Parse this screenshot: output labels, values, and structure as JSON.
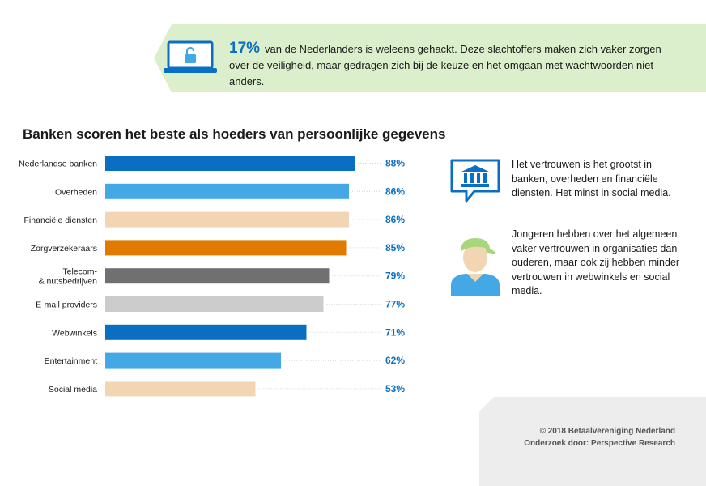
{
  "banner": {
    "percent": "17%",
    "text": "van de Nederlanders is weleens gehackt. Deze slachtoffers maken zich vaker zorgen over de veiligheid, maar gedragen zich bij de keuze en het omgaan met wachtwoorden niet anders.",
    "icon": "laptop-lock-icon"
  },
  "chart_data": {
    "type": "bar",
    "orientation": "horizontal",
    "title": "Banken scoren het beste als hoeders van persoonlijke gegevens",
    "categories": [
      "Nederlandse banken",
      "Overheden",
      "Financiële diensten",
      "Zorgverzekeraars",
      "Telecom- & nutsbedrijven",
      "E-mail providers",
      "Webwinkels",
      "Entertainment",
      "Social media"
    ],
    "values": [
      88,
      86,
      86,
      85,
      79,
      77,
      71,
      62,
      53
    ],
    "value_labels": [
      "88%",
      "86%",
      "86%",
      "85%",
      "79%",
      "77%",
      "71%",
      "62%",
      "53%"
    ],
    "colors": [
      "#0a6fc2",
      "#45a8e6",
      "#f2d6b3",
      "#e07b00",
      "#707070",
      "#cccccc",
      "#0a6fc2",
      "#45a8e6",
      "#f2d6b3"
    ],
    "xlim": [
      0,
      100
    ],
    "grid": false
  },
  "info": {
    "bank_text": "Het vertrouwen is het grootst in banken, overheden en financiële diensten. Het minst in social media.",
    "bank_icon": "bank-speech-bubble-icon",
    "youth_text": "Jongeren hebben over het algemeen vaker vertrouwen in organisaties dan ouderen, maar ook zij hebben minder vertrouwen in webwinkels en social media.",
    "youth_icon": "young-person-cap-icon"
  },
  "footer": {
    "copyright": "© 2018 Betaalvereniging Nederland",
    "research": "Onderzoek door: Perspective Research"
  },
  "colors": {
    "accent": "#0a6fc2",
    "banner_bg": "#dcefcc"
  }
}
